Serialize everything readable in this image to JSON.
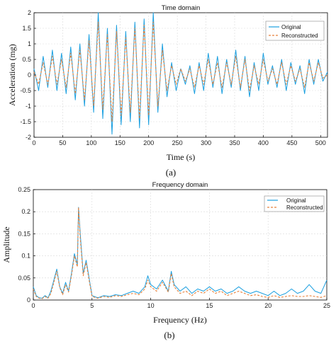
{
  "colors": {
    "original": "#1a9fe0",
    "reconstructed": "#e8803a",
    "axis": "#000000",
    "grid": "#d9d9d9"
  },
  "chart_data": [
    {
      "type": "line",
      "title": "Time domain",
      "xlabel": "Time (s)",
      "ylabel": "Acceleration (mg)",
      "caption": "(a)",
      "xlim": [
        0,
        512
      ],
      "ylim": [
        -2,
        2
      ],
      "xticks": [
        "0",
        "50",
        "100",
        "150",
        "200",
        "250",
        "300",
        "350",
        "400",
        "450",
        "500"
      ],
      "yticks": [
        "-2",
        "-1.5",
        "-1",
        "-0.5",
        "0",
        "0.5",
        "1",
        "1.5",
        "2"
      ],
      "grid": true,
      "legend": {
        "placement": "top-right",
        "entries": [
          "Original",
          "Reconstructed"
        ]
      },
      "x": [
        0,
        8,
        16,
        24,
        32,
        40,
        48,
        56,
        64,
        72,
        80,
        88,
        96,
        104,
        112,
        120,
        128,
        136,
        144,
        152,
        160,
        168,
        176,
        184,
        192,
        200,
        208,
        216,
        224,
        232,
        240,
        248,
        256,
        264,
        272,
        280,
        288,
        296,
        304,
        312,
        320,
        328,
        336,
        344,
        352,
        360,
        368,
        376,
        384,
        392,
        400,
        408,
        416,
        424,
        432,
        440,
        448,
        456,
        464,
        472,
        480,
        488,
        496,
        504,
        512
      ],
      "series": [
        {
          "name": "Original",
          "values": [
            0.2,
            -0.5,
            0.6,
            -0.4,
            0.8,
            -0.5,
            0.7,
            -0.6,
            0.9,
            -0.8,
            1.0,
            -1.0,
            1.3,
            -1.2,
            2.0,
            -1.4,
            1.5,
            -1.9,
            1.6,
            -1.6,
            1.4,
            -1.5,
            1.7,
            -1.7,
            1.8,
            -1.6,
            2.0,
            -1.2,
            1.0,
            -0.7,
            0.4,
            -0.5,
            0.2,
            -0.3,
            0.3,
            -0.6,
            0.4,
            -0.5,
            0.7,
            -0.4,
            0.6,
            -0.6,
            0.5,
            -0.4,
            0.8,
            -0.5,
            0.6,
            -0.7,
            0.4,
            -0.5,
            0.7,
            -0.3,
            0.3,
            -0.4,
            0.5,
            -0.5,
            0.4,
            -0.3,
            0.3,
            -0.6,
            0.5,
            -0.3,
            0.5,
            -0.2,
            0.1
          ]
        },
        {
          "name": "Reconstructed",
          "values": [
            0.1,
            -0.3,
            0.4,
            -0.3,
            0.6,
            -0.3,
            0.5,
            -0.4,
            0.7,
            -0.6,
            0.8,
            -0.8,
            1.1,
            -1.0,
            1.7,
            -1.1,
            1.3,
            -1.5,
            1.4,
            -1.3,
            1.2,
            -1.2,
            1.5,
            -1.4,
            1.6,
            -1.3,
            1.7,
            -1.0,
            0.8,
            -0.5,
            0.3,
            -0.3,
            0.2,
            -0.2,
            0.2,
            -0.4,
            0.3,
            -0.3,
            0.5,
            -0.3,
            0.4,
            -0.4,
            0.4,
            -0.3,
            0.6,
            -0.4,
            0.5,
            -0.5,
            0.3,
            -0.3,
            0.5,
            -0.2,
            0.2,
            -0.3,
            0.4,
            -0.3,
            0.3,
            -0.2,
            0.2,
            -0.4,
            0.4,
            -0.2,
            0.4,
            -0.1,
            0.0
          ]
        }
      ]
    },
    {
      "type": "line",
      "title": "Frequency domain",
      "xlabel": "Frequency (Hz)",
      "ylabel": "Amplitude",
      "caption": "(b)",
      "xlim": [
        0,
        25
      ],
      "ylim": [
        0,
        0.25
      ],
      "xticks": [
        "0",
        "5",
        "10",
        "15",
        "20",
        "25"
      ],
      "yticks": [
        "0",
        "0.05",
        "0.1",
        "0.15",
        "0.2",
        "0.25"
      ],
      "grid": true,
      "legend": {
        "placement": "top-right",
        "entries": [
          "Original",
          "Reconstructed"
        ]
      },
      "x": [
        0,
        0.25,
        0.5,
        0.75,
        1,
        1.25,
        1.5,
        1.75,
        2,
        2.25,
        2.5,
        2.75,
        3,
        3.25,
        3.5,
        3.75,
        3.85,
        4,
        4.25,
        4.5,
        4.75,
        5,
        5.5,
        6,
        6.5,
        7,
        7.5,
        8,
        8.5,
        9,
        9.5,
        9.75,
        10,
        10.5,
        11,
        11.5,
        11.75,
        12,
        12.5,
        13,
        13.5,
        14,
        14.5,
        15,
        15.5,
        16,
        16.5,
        17,
        17.5,
        18,
        18.5,
        19,
        19.5,
        20,
        20.5,
        21,
        21.5,
        22,
        22.5,
        23,
        23.5,
        24,
        24.5,
        25
      ],
      "series": [
        {
          "name": "Original",
          "values": [
            0.03,
            0.01,
            0.005,
            0.004,
            0.01,
            0.005,
            0.02,
            0.045,
            0.07,
            0.03,
            0.015,
            0.04,
            0.02,
            0.06,
            0.105,
            0.08,
            0.21,
            0.15,
            0.06,
            0.09,
            0.05,
            0.01,
            0.005,
            0.01,
            0.008,
            0.012,
            0.01,
            0.015,
            0.02,
            0.015,
            0.03,
            0.055,
            0.035,
            0.025,
            0.045,
            0.02,
            0.065,
            0.035,
            0.02,
            0.03,
            0.015,
            0.025,
            0.02,
            0.03,
            0.02,
            0.025,
            0.015,
            0.02,
            0.03,
            0.02,
            0.015,
            0.02,
            0.015,
            0.01,
            0.02,
            0.01,
            0.015,
            0.025,
            0.015,
            0.02,
            0.035,
            0.02,
            0.015,
            0.045
          ]
        },
        {
          "name": "Reconstructed",
          "values": [
            0.025,
            0.008,
            0.004,
            0.003,
            0.008,
            0.004,
            0.015,
            0.04,
            0.065,
            0.028,
            0.012,
            0.035,
            0.018,
            0.055,
            0.1,
            0.075,
            0.21,
            0.14,
            0.055,
            0.085,
            0.045,
            0.008,
            0.004,
            0.008,
            0.006,
            0.01,
            0.008,
            0.012,
            0.015,
            0.012,
            0.025,
            0.045,
            0.03,
            0.02,
            0.04,
            0.018,
            0.06,
            0.03,
            0.015,
            0.02,
            0.01,
            0.02,
            0.015,
            0.025,
            0.015,
            0.02,
            0.01,
            0.015,
            0.02,
            0.015,
            0.01,
            0.012,
            0.008,
            0.006,
            0.01,
            0.006,
            0.008,
            0.01,
            0.008,
            0.008,
            0.01,
            0.008,
            0.006,
            0.01
          ]
        }
      ]
    }
  ]
}
